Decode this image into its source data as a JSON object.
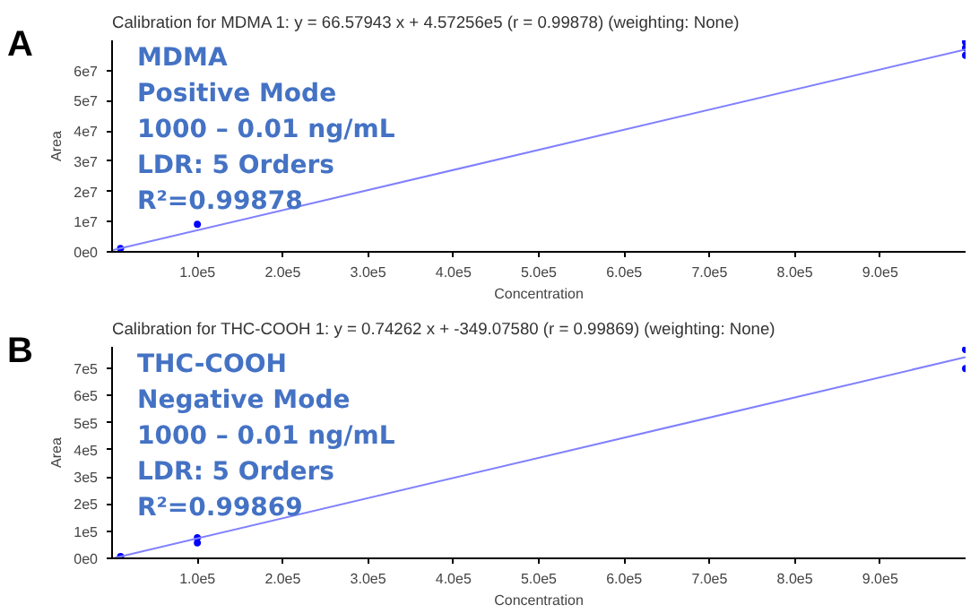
{
  "chart_data": [
    {
      "type": "scatter",
      "title": "Calibration for MDMA 1: y = 66.57943 x + 4.57256e5 (r = 0.99878)  (weighting: None)",
      "xlabel": "Concentration",
      "ylabel": "Area",
      "annotations": [
        "A",
        "MDMA",
        "Positive Mode",
        "1000 – 0.01 ng/mL",
        "LDR: 5 Orders",
        "R²=0.99878"
      ],
      "series": [
        {
          "color": "#0000ff",
          "marker": "circle",
          "x": [
            1000000,
            1000000,
            1000000,
            100000,
            10000
          ],
          "values": [
            69500000,
            67500000,
            65000000,
            9100000,
            1100000
          ]
        },
        {
          "type": "line",
          "color": "#8080ff",
          "x": [
            0,
            1000000
          ],
          "values": [
            500000,
            67000000
          ]
        }
      ],
      "xlim": [
        0,
        1000000
      ],
      "ylim": [
        0,
        70000000
      ],
      "xticks": [
        {
          "value": 100000,
          "label": "1.0e5"
        },
        {
          "value": 200000,
          "label": "2.0e5"
        },
        {
          "value": 300000,
          "label": "3.0e5"
        },
        {
          "value": 400000,
          "label": "4.0e5"
        },
        {
          "value": 500000,
          "label": "5.0e5"
        },
        {
          "value": 600000,
          "label": "6.0e5"
        },
        {
          "value": 700000,
          "label": "7.0e5"
        },
        {
          "value": 800000,
          "label": "8.0e5"
        },
        {
          "value": 900000,
          "label": "9.0e5"
        }
      ],
      "yticks": [
        {
          "value": 0,
          "label": "0e0"
        },
        {
          "value": 10000000,
          "label": "1e7"
        },
        {
          "value": 20000000,
          "label": "2e7"
        },
        {
          "value": 30000000,
          "label": "3e7"
        },
        {
          "value": 40000000,
          "label": "4e7"
        },
        {
          "value": 50000000,
          "label": "5e7"
        },
        {
          "value": 60000000,
          "label": "6e7"
        }
      ],
      "grid": false
    },
    {
      "type": "scatter",
      "title": "Calibration for THC-COOH 1: y = 0.74262 x + -349.07580 (r = 0.99869)  (weighting: None)",
      "xlabel": "Concentration",
      "ylabel": "Area",
      "annotations": [
        "B",
        "THC-COOH",
        "Negative Mode",
        "1000 – 0.01 ng/mL",
        "LDR: 5 Orders",
        "R²=0.99869"
      ],
      "series": [
        {
          "color": "#0000ff",
          "marker": "circle",
          "x": [
            1000000,
            1000000,
            100000,
            100000,
            10000
          ],
          "values": [
            770000,
            700000,
            76000,
            57000,
            7000
          ]
        },
        {
          "type": "line",
          "color": "#8080ff",
          "x": [
            1000,
            1000000
          ],
          "values": [
            0,
            742000
          ]
        }
      ],
      "xlim": [
        0,
        1000000
      ],
      "ylim": [
        0,
        780000
      ],
      "xticks": [
        {
          "value": 100000,
          "label": "1.0e5"
        },
        {
          "value": 200000,
          "label": "2.0e5"
        },
        {
          "value": 300000,
          "label": "3.0e5"
        },
        {
          "value": 400000,
          "label": "4.0e5"
        },
        {
          "value": 500000,
          "label": "5.0e5"
        },
        {
          "value": 600000,
          "label": "6.0e5"
        },
        {
          "value": 700000,
          "label": "7.0e5"
        },
        {
          "value": 800000,
          "label": "8.0e5"
        },
        {
          "value": 900000,
          "label": "9.0e5"
        }
      ],
      "yticks": [
        {
          "value": 0,
          "label": "0e0"
        },
        {
          "value": 100000,
          "label": "1e5"
        },
        {
          "value": 200000,
          "label": "2e5"
        },
        {
          "value": 300000,
          "label": "3e5"
        },
        {
          "value": 400000,
          "label": "4e5"
        },
        {
          "value": 500000,
          "label": "5e5"
        },
        {
          "value": 600000,
          "label": "6e5"
        },
        {
          "value": 700000,
          "label": "7e5"
        }
      ],
      "grid": false
    }
  ]
}
